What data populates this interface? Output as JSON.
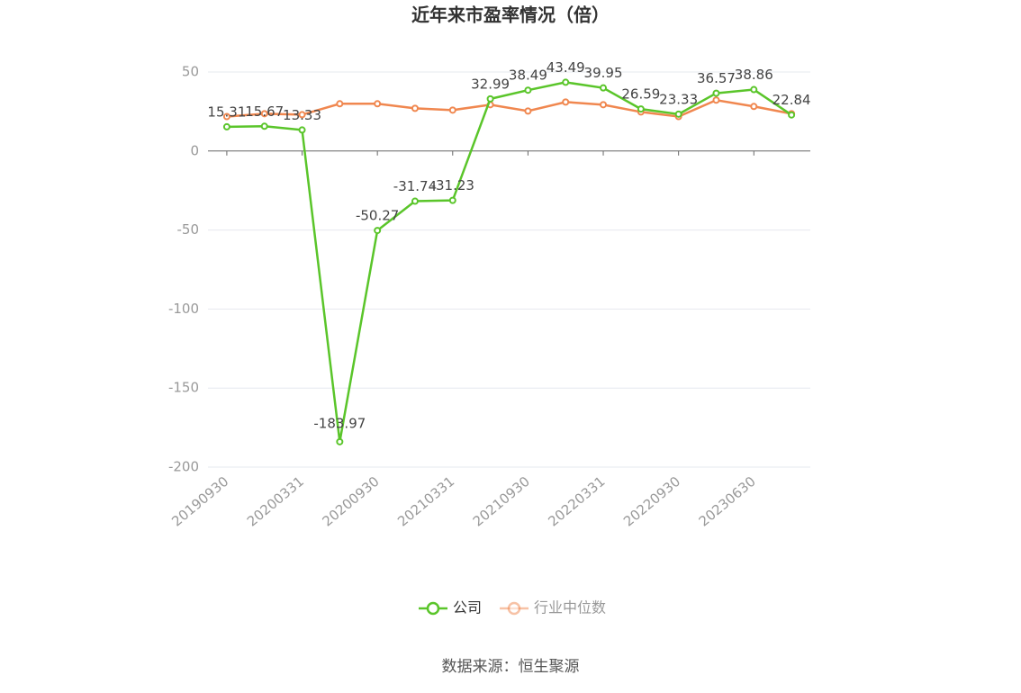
{
  "chart_data": {
    "type": "line",
    "title": "近年来市盈率情况（倍）",
    "source": "数据来源：恒生聚源",
    "categories": [
      "20190930",
      null,
      "20200331",
      null,
      "20200930",
      null,
      "20210331",
      null,
      "20210930",
      null,
      "20220331",
      null,
      "20220930",
      null,
      "20230630",
      null
    ],
    "series": [
      {
        "name": "公司",
        "color": "#5ac52a",
        "values": [
          15.31,
          15.67,
          13.33,
          -183.97,
          -50.27,
          -31.74,
          -31.23,
          32.99,
          38.49,
          43.49,
          39.95,
          26.59,
          23.33,
          36.57,
          38.86,
          22.84
        ],
        "show_labels": true
      },
      {
        "name": "行业中位数",
        "color": "#f0874f",
        "values": [
          21.8,
          23.6,
          23.0,
          29.9,
          29.9,
          27.0,
          25.9,
          29.3,
          25.3,
          31.0,
          29.3,
          24.7,
          21.8,
          32.2,
          28.2,
          23.6
        ],
        "show_labels": false
      }
    ],
    "ylim": [
      -200,
      50
    ],
    "yticks": [
      -200,
      -150,
      -100,
      -50,
      0,
      50
    ],
    "grid": true,
    "legend": "bottom"
  }
}
